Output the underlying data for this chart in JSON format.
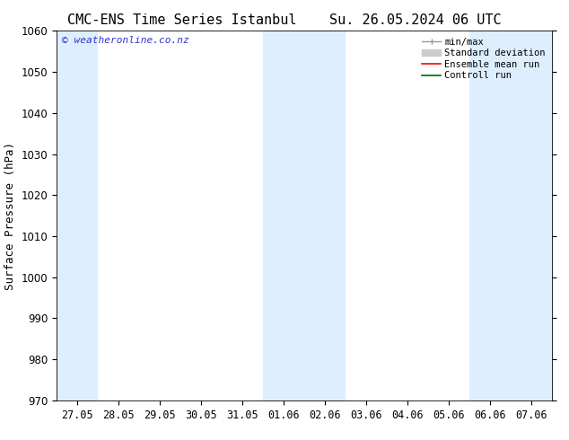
{
  "title_left": "CMC-ENS Time Series Istanbul",
  "title_right": "Su. 26.05.2024 06 UTC",
  "ylabel": "Surface Pressure (hPa)",
  "ylim": [
    970,
    1060
  ],
  "yticks": [
    970,
    980,
    990,
    1000,
    1010,
    1020,
    1030,
    1040,
    1050,
    1060
  ],
  "xtick_labels": [
    "27.05",
    "28.05",
    "29.05",
    "30.05",
    "31.05",
    "01.06",
    "02.06",
    "03.06",
    "04.06",
    "05.06",
    "06.06",
    "07.06"
  ],
  "n_xticks": 12,
  "shaded_columns": [
    0,
    5,
    6,
    10,
    11
  ],
  "shaded_color": "#ddeeff",
  "background_color": "#ffffff",
  "watermark": "© weatheronline.co.nz",
  "watermark_color": "#3333cc",
  "legend_labels": [
    "min/max",
    "Standard deviation",
    "Ensemble mean run",
    "Controll run"
  ],
  "legend_colors": [
    "#999999",
    "#cccccc",
    "#ff0000",
    "#006600"
  ],
  "title_fontsize": 11,
  "axis_label_fontsize": 9,
  "tick_fontsize": 8.5,
  "legend_fontsize": 7.5,
  "watermark_fontsize": 8
}
